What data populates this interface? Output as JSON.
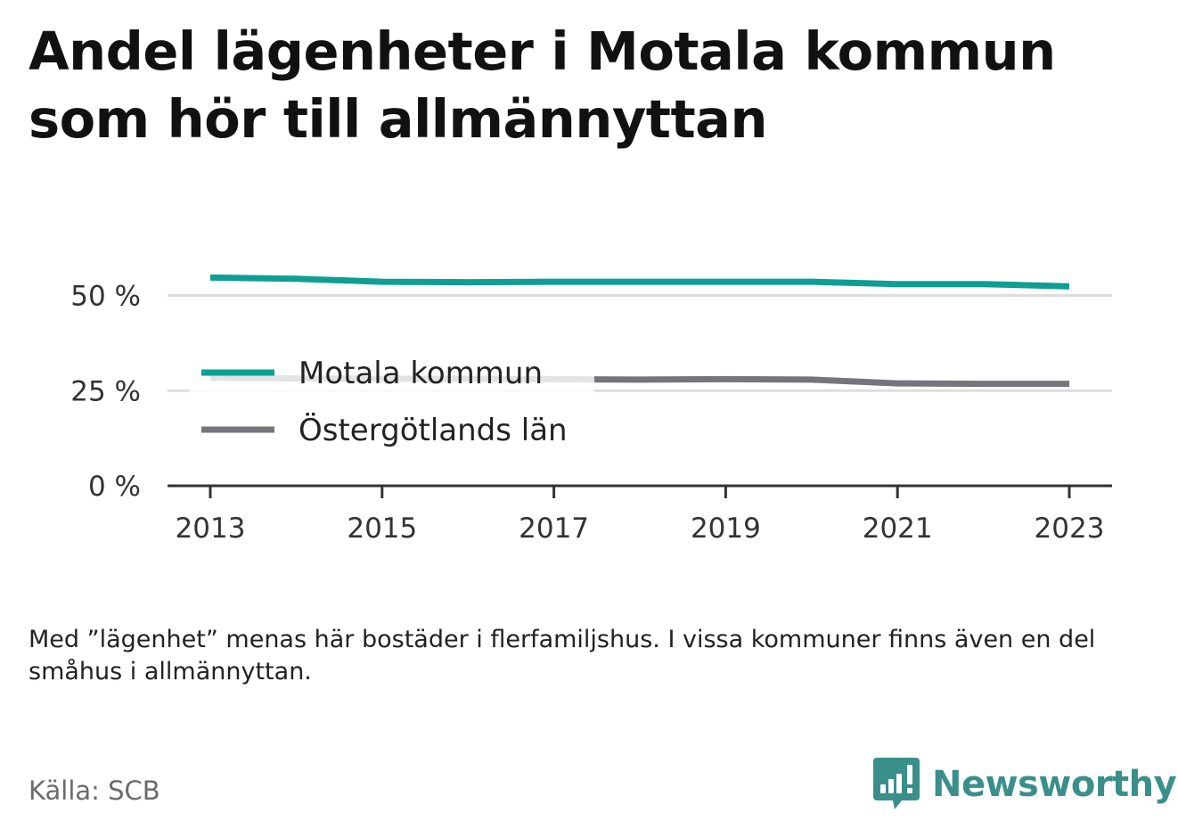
{
  "title": "Andel lägenheter i Motala kommun som hör till allmännyttan",
  "note": "Med ”lägenhet” menas här bostäder i flerfamiljshus. I vissa kommuner finns även en del småhus i allmännyttan.",
  "source": "Källa: SCB",
  "brand": {
    "name": "Newsworthy",
    "icon": "newsworthy-logo-icon",
    "color": "#3b8f8a"
  },
  "chart_data": {
    "type": "line",
    "x": [
      2013,
      2014,
      2015,
      2016,
      2017,
      2018,
      2019,
      2020,
      2021,
      2022,
      2023
    ],
    "xticks": [
      "2013",
      "2015",
      "2017",
      "2019",
      "2021",
      "2023"
    ],
    "yticks": [
      "0 %",
      "25 %",
      "50 %"
    ],
    "ylim": [
      0,
      55
    ],
    "unit": "%",
    "grid": true,
    "legend_position": "center-left",
    "series": [
      {
        "name": "Motala kommun",
        "color": "#0f9e93",
        "values": [
          54.7,
          54.4,
          53.6,
          53.5,
          53.6,
          53.6,
          53.6,
          53.6,
          53.0,
          53.0,
          52.4
        ]
      },
      {
        "name": "Östergötlands län",
        "color": "#75757b",
        "values": [
          28.4,
          28.2,
          28.1,
          28.1,
          28.0,
          27.9,
          28.0,
          27.9,
          26.9,
          26.8,
          26.8
        ]
      }
    ]
  }
}
